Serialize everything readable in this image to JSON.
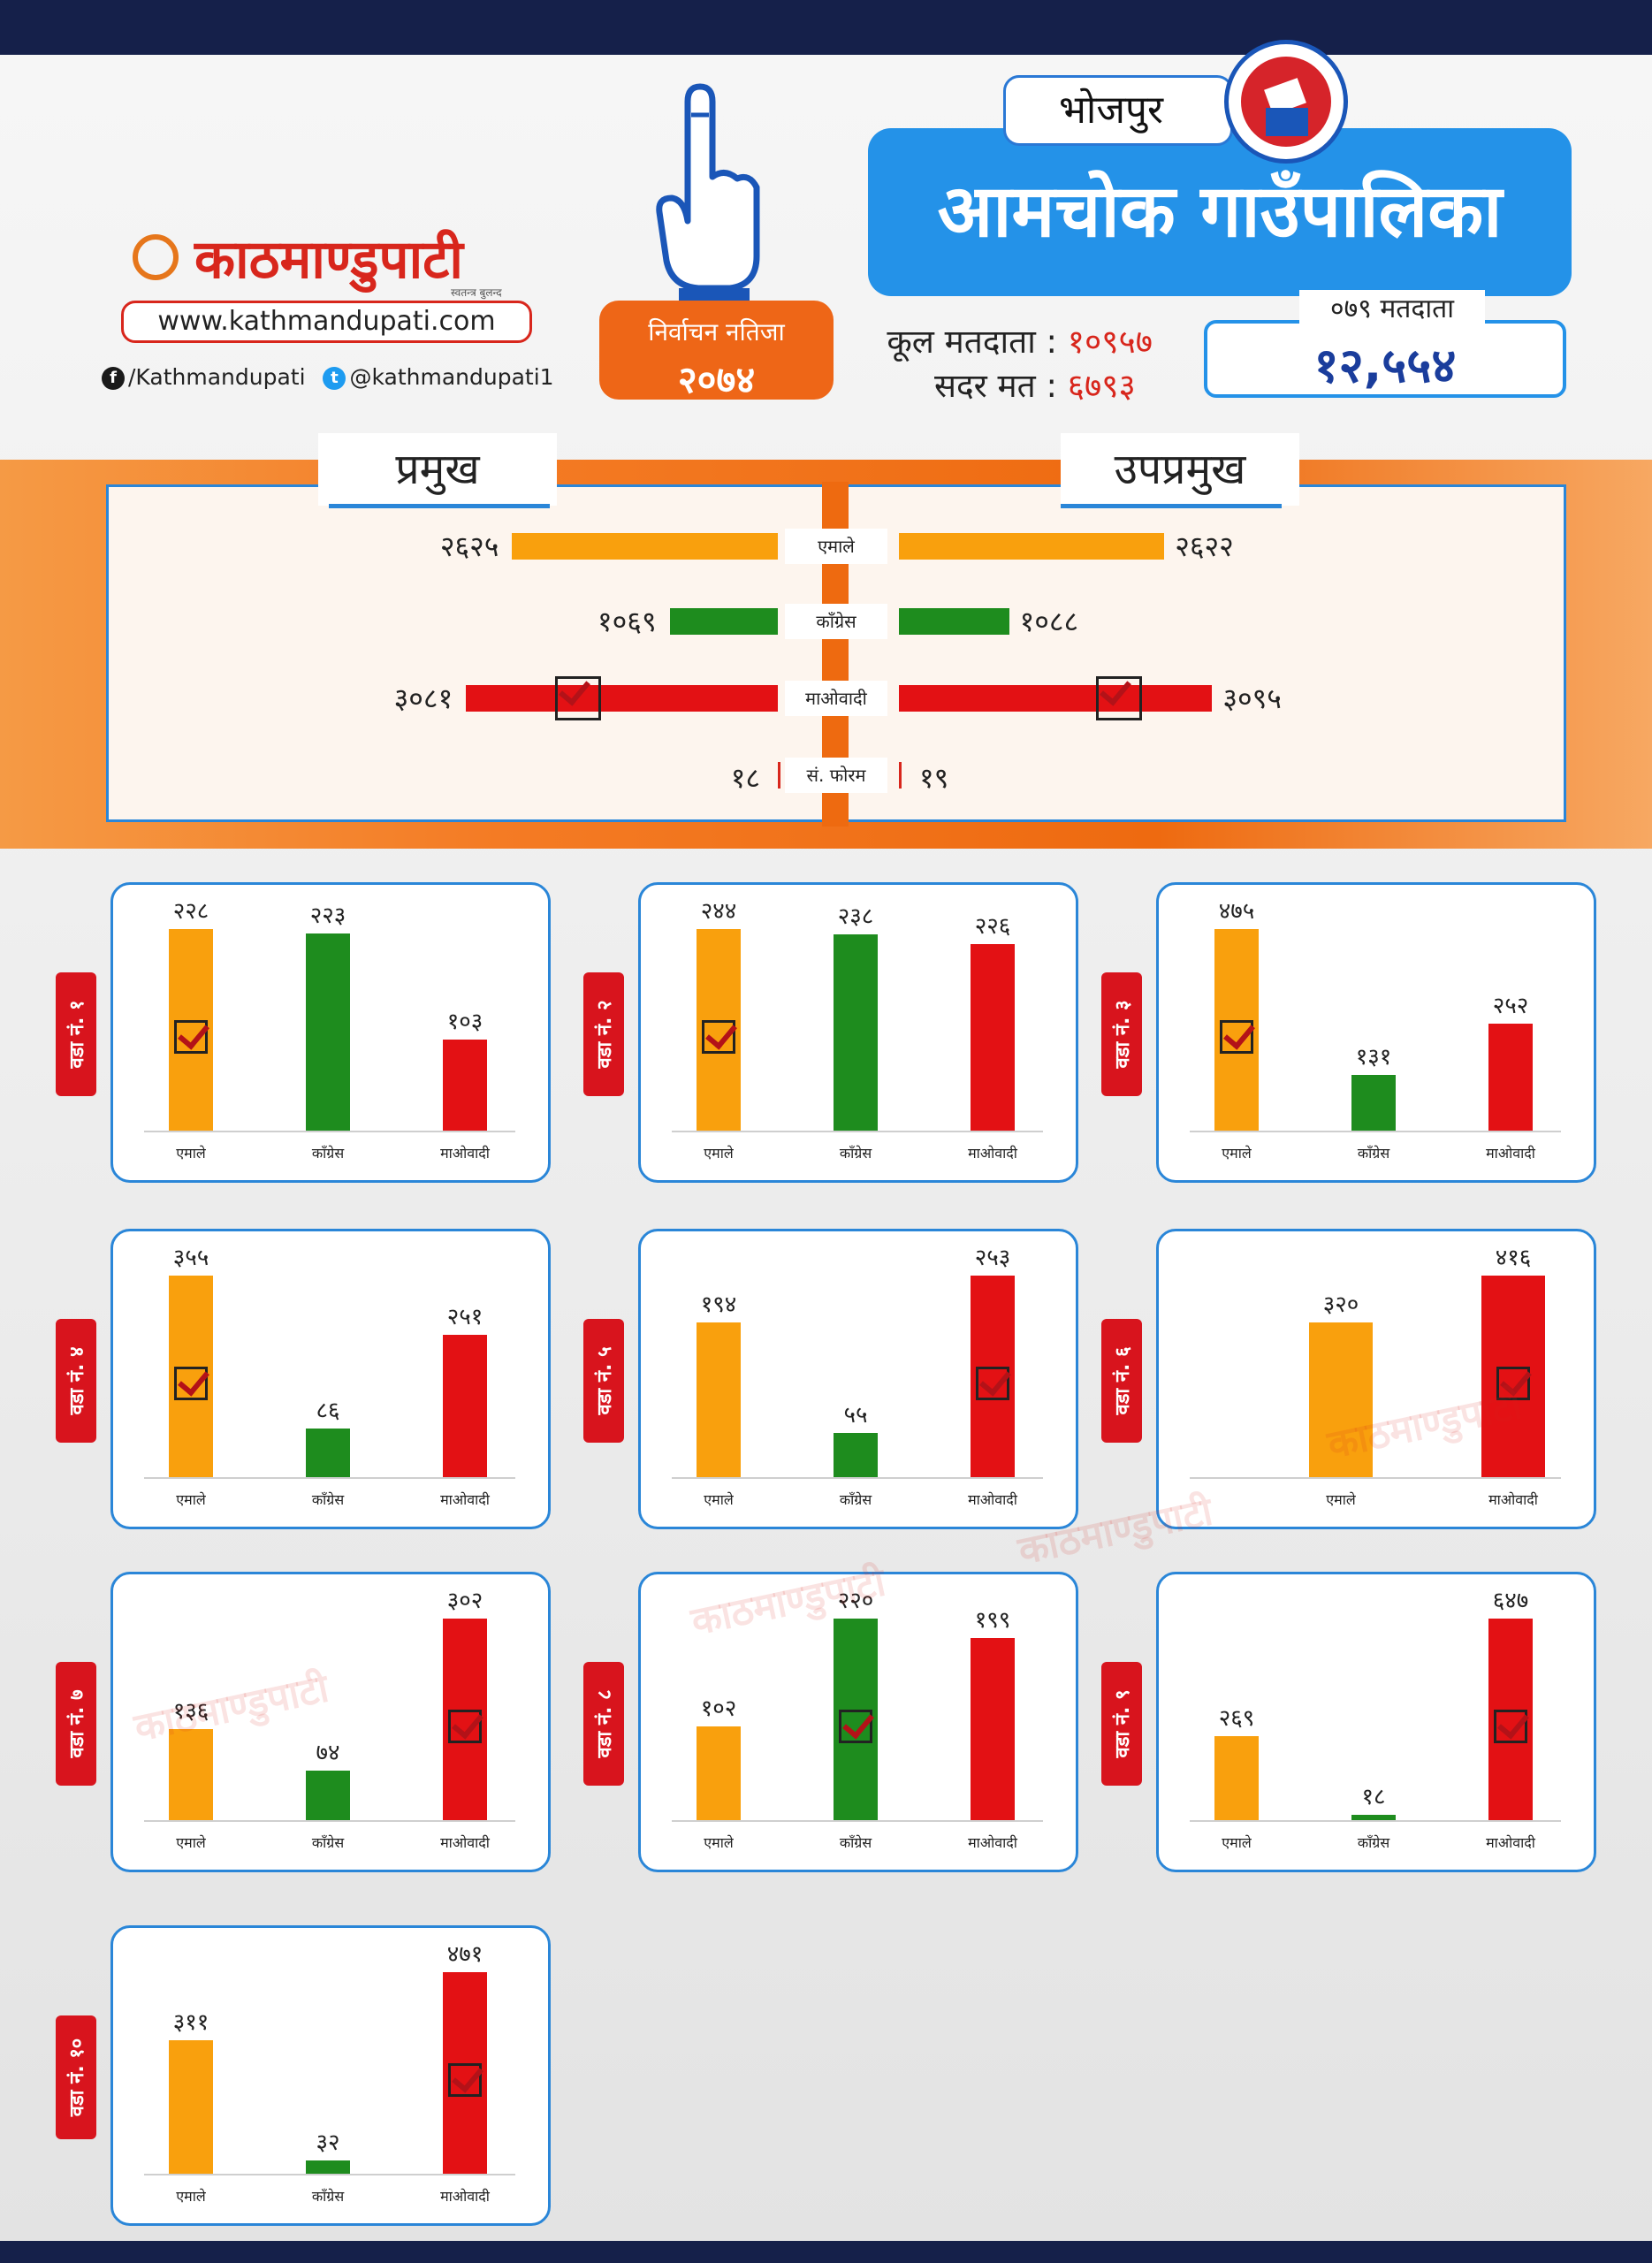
{
  "header": {
    "logo_text": "काठमाण्डुपाटी",
    "logo_tagline": "स्वतन्त्र बुलन्द आवाज",
    "website": "www.kathmandupati.com",
    "facebook": "/Kathmandupati",
    "twitter": "@kathmandupati1",
    "district": "भोजपुर",
    "municipality": "आमचोक गाउँपालिका",
    "result_label": "निर्वाचन नतिजा",
    "result_year": "२०७४",
    "total_voters_label": "कूल मतदाता :",
    "total_voters": "१०९५७",
    "valid_votes_label": "सदर मत :",
    "valid_votes": "६७९३",
    "voters_079_label": "०७९ मतदाता",
    "voters_079": "१२,५५४"
  },
  "colors": {
    "एमाले": "#f9a00d",
    "काँग्रेस": "#1e8c1e",
    "माओवादी": "#e31114",
    "accent": "#2492e8",
    "brand": "#d8261c"
  },
  "icons": {
    "finger": "voting-finger-icon",
    "ballot": "ballot-box-icon",
    "check": "checkmark-icon"
  },
  "chart_data": [
    {
      "type": "bar",
      "title": "प्रमुख",
      "categories": [
        "एमाले",
        "काँग्रेस",
        "माओवादी",
        "सं. फोरम"
      ],
      "values": [
        2625,
        1069,
        3081,
        18
      ],
      "labels": [
        "२६२५",
        "१०६९",
        "३०८१",
        "१८"
      ],
      "winner": "माओवादी"
    },
    {
      "type": "bar",
      "title": "उपप्रमुख",
      "categories": [
        "एमाले",
        "काँग्रेस",
        "माओवादी",
        "सं. फोरम"
      ],
      "values": [
        2622,
        1088,
        3095,
        19
      ],
      "labels": [
        "२६२२",
        "१०८८",
        "३०९५",
        "१९"
      ],
      "winner": "माओवादी"
    },
    {
      "type": "bar",
      "title": "वडा नं. १",
      "categories": [
        "एमाले",
        "काँग्रेस",
        "माओवादी"
      ],
      "values": [
        228,
        223,
        103
      ],
      "labels": [
        "२२८",
        "२२३",
        "१०३"
      ],
      "winner": "एमाले"
    },
    {
      "type": "bar",
      "title": "वडा नं. २",
      "categories": [
        "एमाले",
        "काँग्रेस",
        "माओवादी"
      ],
      "values": [
        244,
        238,
        226
      ],
      "labels": [
        "२४४",
        "२३८",
        "२२६"
      ],
      "winner": "एमाले"
    },
    {
      "type": "bar",
      "title": "वडा नं. ३",
      "categories": [
        "एमाले",
        "काँग्रेस",
        "माओवादी"
      ],
      "values": [
        475,
        131,
        252
      ],
      "labels": [
        "४७५",
        "१३१",
        "२५२"
      ],
      "winner": "एमाले"
    },
    {
      "type": "bar",
      "title": "वडा नं. ४",
      "categories": [
        "एमाले",
        "काँग्रेस",
        "माओवादी"
      ],
      "values": [
        355,
        86,
        251
      ],
      "labels": [
        "३५५",
        "८६",
        "२५१"
      ],
      "winner": "एमाले"
    },
    {
      "type": "bar",
      "title": "वडा नं. ५",
      "categories": [
        "एमाले",
        "काँग्रेस",
        "माओवादी"
      ],
      "values": [
        194,
        55,
        253
      ],
      "labels": [
        "१९४",
        "५५",
        "२५३"
      ],
      "winner": "माओवादी"
    },
    {
      "type": "bar",
      "title": "वडा नं. ६",
      "categories": [
        "एमाले",
        "माओवादी"
      ],
      "values": [
        320,
        416
      ],
      "labels": [
        "३२०",
        "४१६"
      ],
      "winner": "माओवादी"
    },
    {
      "type": "bar",
      "title": "वडा नं. ७",
      "categories": [
        "एमाले",
        "काँग्रेस",
        "माओवादी"
      ],
      "values": [
        136,
        74,
        302
      ],
      "labels": [
        "१३६",
        "७४",
        "३०२"
      ],
      "winner": "माओवादी"
    },
    {
      "type": "bar",
      "title": "वडा नं. ८",
      "categories": [
        "एमाले",
        "काँग्रेस",
        "माओवादी"
      ],
      "values": [
        102,
        220,
        199
      ],
      "labels": [
        "१०२",
        "२२०",
        "१९९"
      ],
      "winner": "काँग्रेस"
    },
    {
      "type": "bar",
      "title": "वडा नं. ९",
      "categories": [
        "एमाले",
        "काँग्रेस",
        "माओवादी"
      ],
      "values": [
        269,
        18,
        647
      ],
      "labels": [
        "२६९",
        "१८",
        "६४७"
      ],
      "winner": "माओवादी"
    },
    {
      "type": "bar",
      "title": "वडा नं. १०",
      "categories": [
        "एमाले",
        "काँग्रेस",
        "माओवादी"
      ],
      "values": [
        311,
        32,
        471
      ],
      "labels": [
        "३११",
        "३२",
        "४७१"
      ],
      "winner": "माओवादी"
    }
  ]
}
